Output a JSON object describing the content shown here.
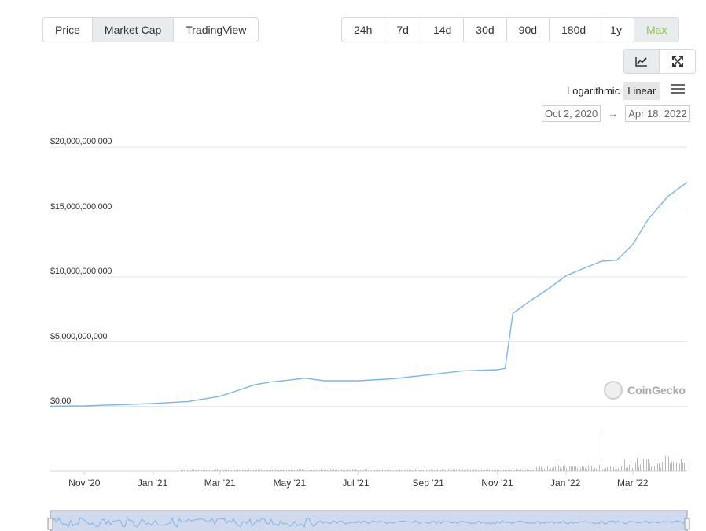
{
  "left_tabs": [
    "Price",
    "Market Cap",
    "TradingView"
  ],
  "left_tab_active": "Market Cap",
  "range_tabs": [
    "24h",
    "7d",
    "14d",
    "30d",
    "90d",
    "180d",
    "1y",
    "Max"
  ],
  "range_tab_active": "Max",
  "view_toggle": {
    "chart_icon": "line-chart-icon",
    "fullscreen_icon": "expand-icon"
  },
  "scale": {
    "log_label": "Logarithmic",
    "linear_label": "Linear",
    "selected": "Linear"
  },
  "date_range": {
    "from": "Oct 2, 2020",
    "arrow": "→",
    "to": "Apr 18, 2022"
  },
  "watermark": "CoinGecko",
  "colors": {
    "line": "#7cb5ec",
    "accent_green": "#8dc647",
    "grid": "#e6e6e6"
  },
  "chart_data": {
    "type": "line",
    "title": "",
    "ylabel": "",
    "xlabel": "",
    "y_ticks": [
      "$20,000,000,000",
      "$15,000,000,000",
      "$10,000,000,000",
      "$5,000,000,000",
      "$0.00"
    ],
    "ylim": [
      0,
      20000000000
    ],
    "x_ticks": [
      "Nov '20",
      "Jan '21",
      "Mar '21",
      "May '21",
      "Jul '21",
      "Sep '21",
      "Nov '21",
      "Jan '22",
      "Mar '22"
    ],
    "xlim": [
      "2020-10-02",
      "2022-04-18"
    ],
    "grid": true,
    "series": [
      {
        "x": [
          "2020-10-02",
          "2020-11-01",
          "2020-12-01",
          "2021-01-01",
          "2021-02-01",
          "2021-03-01",
          "2021-03-15",
          "2021-04-01",
          "2021-04-15",
          "2021-05-01",
          "2021-05-15",
          "2021-06-01",
          "2021-07-01",
          "2021-08-01",
          "2021-09-01",
          "2021-10-01",
          "2021-11-01",
          "2021-11-08",
          "2021-11-15",
          "2021-12-01",
          "2021-12-15",
          "2022-01-01",
          "2022-01-15",
          "2022-02-01",
          "2022-02-15",
          "2022-03-01",
          "2022-03-15",
          "2022-04-01",
          "2022-04-18"
        ],
        "values": [
          40000000,
          60000000,
          150000000,
          250000000,
          400000000,
          800000000,
          1200000000,
          1700000000,
          1900000000,
          2050000000,
          2200000000,
          2000000000,
          2000000000,
          2150000000,
          2450000000,
          2750000000,
          2850000000,
          2950000000,
          7200000000,
          8200000000,
          9000000000,
          10100000000,
          10600000000,
          11200000000,
          11300000000,
          12500000000,
          14500000000,
          16200000000,
          17300000000
        ]
      }
    ]
  }
}
